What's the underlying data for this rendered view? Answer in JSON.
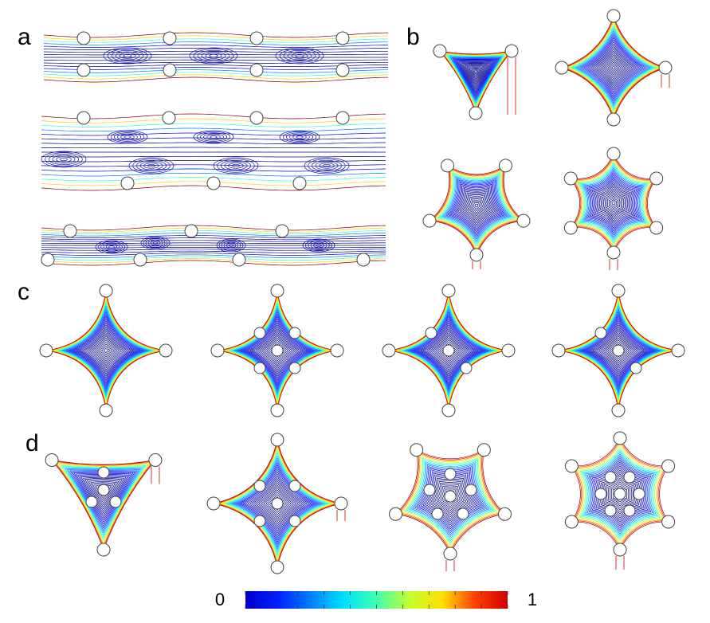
{
  "panels": {
    "a": "a",
    "b": "b",
    "c": "c",
    "d": "d"
  },
  "colorbar": {
    "min": 0,
    "max": 1,
    "ticks": [
      0,
      0.1,
      0.2,
      0.3,
      0.4,
      0.5,
      0.6,
      0.7,
      0.8,
      0.9,
      1
    ]
  }
}
